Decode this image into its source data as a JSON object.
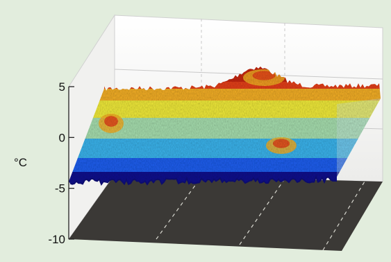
{
  "chart_data": {
    "type": "surface",
    "title": "",
    "zlabel": "°C",
    "zlim": [
      -10,
      5
    ],
    "z_ticks": [
      {
        "value": 5,
        "label": "5"
      },
      {
        "value": 0,
        "label": "0"
      },
      {
        "value": -5,
        "label": "-5"
      },
      {
        "value": -10,
        "label": "-10"
      }
    ],
    "grid": true,
    "colormap": "jet",
    "colors": {
      "background": "#e2eddd",
      "pane": "#f8f8f6",
      "floor": "#3b3936",
      "grid": "#c8c8c8",
      "floor_grid": "#d8d8d0",
      "colormap_stops": [
        "#10108f",
        "#1e5ff0",
        "#3bb5ee",
        "#a8e0b0",
        "#f2ec3a",
        "#f5b026",
        "#e6401a",
        "#c82810"
      ]
    }
  }
}
